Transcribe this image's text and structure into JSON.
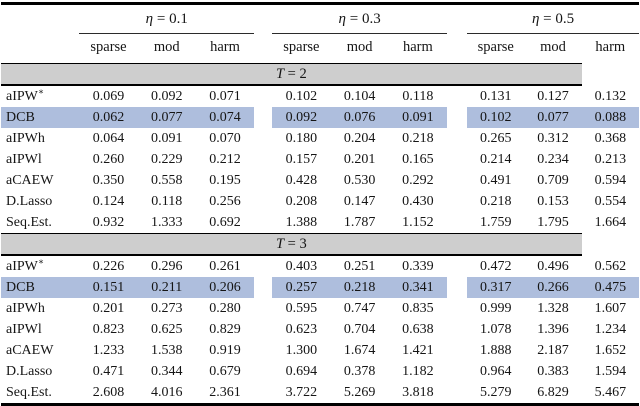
{
  "colors": {
    "highlight": "#aebedd",
    "section_band": "#cecece",
    "rule": "#000000"
  },
  "table": {
    "groups": [
      {
        "var": "η",
        "rest": "= 0.1",
        "cols": [
          "sparse",
          "mod",
          "harm"
        ]
      },
      {
        "var": "η",
        "rest": "= 0.3",
        "cols": [
          "sparse",
          "mod",
          "harm"
        ]
      },
      {
        "var": "η",
        "rest": "= 0.5",
        "cols": [
          "sparse",
          "mod",
          "harm"
        ]
      }
    ],
    "sections": [
      {
        "var": "T",
        "rest": "= 2",
        "rows": [
          {
            "label": "aIPW",
            "sup": "∗",
            "highlight": false,
            "values": [
              "0.069",
              "0.092",
              "0.071",
              "0.102",
              "0.104",
              "0.118",
              "0.131",
              "0.127",
              "0.132"
            ]
          },
          {
            "label": "DCB",
            "sup": "",
            "highlight": true,
            "values": [
              "0.062",
              "0.077",
              "0.074",
              "0.092",
              "0.076",
              "0.091",
              "0.102",
              "0.077",
              "0.088"
            ]
          },
          {
            "label": "aIPWh",
            "sup": "",
            "highlight": false,
            "values": [
              "0.064",
              "0.091",
              "0.070",
              "0.180",
              "0.204",
              "0.218",
              "0.265",
              "0.312",
              "0.368"
            ]
          },
          {
            "label": "aIPWl",
            "sup": "",
            "highlight": false,
            "values": [
              "0.260",
              "0.229",
              "0.212",
              "0.157",
              "0.201",
              "0.165",
              "0.214",
              "0.234",
              "0.213"
            ]
          },
          {
            "label": "aCAEW",
            "sup": "",
            "highlight": false,
            "values": [
              "0.350",
              "0.558",
              "0.195",
              "0.428",
              "0.530",
              "0.292",
              "0.491",
              "0.709",
              "0.594"
            ]
          },
          {
            "label": "D.Lasso",
            "sup": "",
            "highlight": false,
            "values": [
              "0.124",
              "0.118",
              "0.256",
              "0.208",
              "0.147",
              "0.430",
              "0.218",
              "0.153",
              "0.554"
            ]
          },
          {
            "label": "Seq.Est.",
            "sup": "",
            "highlight": false,
            "values": [
              "0.932",
              "1.333",
              "0.692",
              "1.388",
              "1.787",
              "1.152",
              "1.759",
              "1.795",
              "1.664"
            ]
          }
        ]
      },
      {
        "var": "T",
        "rest": "= 3",
        "rows": [
          {
            "label": "aIPW",
            "sup": "∗",
            "highlight": false,
            "values": [
              "0.226",
              "0.296",
              "0.261",
              "0.403",
              "0.251",
              "0.339",
              "0.472",
              "0.496",
              "0.562"
            ]
          },
          {
            "label": "DCB",
            "sup": "",
            "highlight": true,
            "values": [
              "0.151",
              "0.211",
              "0.206",
              "0.257",
              "0.218",
              "0.341",
              "0.317",
              "0.266",
              "0.475"
            ]
          },
          {
            "label": "aIPWh",
            "sup": "",
            "highlight": false,
            "values": [
              "0.201",
              "0.273",
              "0.280",
              "0.595",
              "0.747",
              "0.835",
              "0.999",
              "1.328",
              "1.607"
            ]
          },
          {
            "label": "aIPWl",
            "sup": "",
            "highlight": false,
            "values": [
              "0.823",
              "0.625",
              "0.829",
              "0.623",
              "0.704",
              "0.638",
              "1.078",
              "1.396",
              "1.234"
            ]
          },
          {
            "label": "aCAEW",
            "sup": "",
            "highlight": false,
            "values": [
              "1.233",
              "1.538",
              "0.919",
              "1.300",
              "1.674",
              "1.421",
              "1.888",
              "2.187",
              "1.652"
            ]
          },
          {
            "label": "D.Lasso",
            "sup": "",
            "highlight": false,
            "values": [
              "0.471",
              "0.344",
              "0.679",
              "0.694",
              "0.378",
              "1.182",
              "0.964",
              "0.383",
              "1.594"
            ]
          },
          {
            "label": "Seq.Est.",
            "sup": "",
            "highlight": false,
            "values": [
              "2.608",
              "4.016",
              "2.361",
              "3.722",
              "5.269",
              "3.818",
              "5.279",
              "6.829",
              "5.467"
            ]
          }
        ]
      }
    ]
  }
}
